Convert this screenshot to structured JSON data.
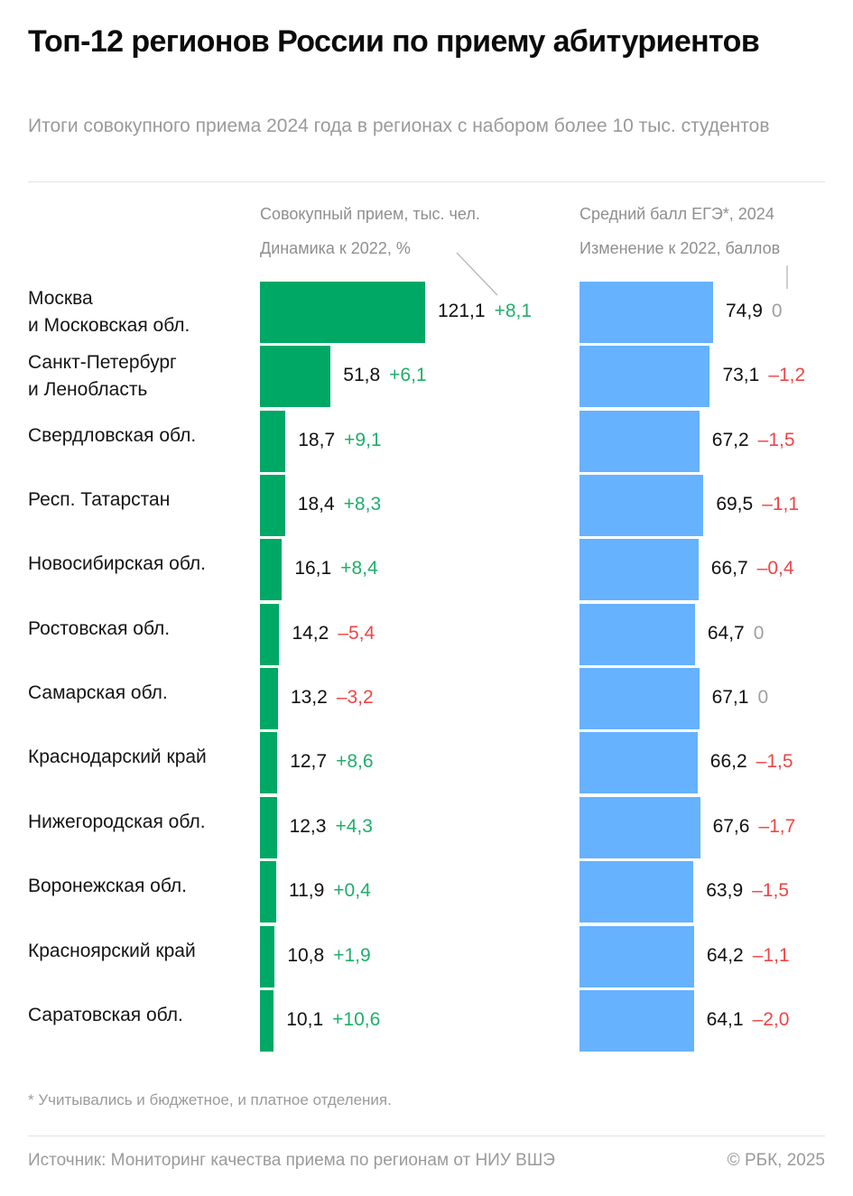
{
  "header": {
    "title": "Топ-12 регионов России по приему абитуриентов",
    "subtitle": "Итоги совокупного приема 2024 года в регионах с набором более 10 тыс. студентов"
  },
  "columns": {
    "left_title": "Совокупный прием, тыс. чел.",
    "left_subtitle": "Динамика к 2022, %",
    "right_title": "Средний балл ЕГЭ*, 2024",
    "right_subtitle": "Изменение к 2022, баллов"
  },
  "colors": {
    "admissions_bar": "#00a865",
    "score_bar": "#66b2ff",
    "positive": "#1fae6a",
    "negative": "#f04545",
    "neutral": "#a0a0a0"
  },
  "chart_data": {
    "type": "bar",
    "orientation": "horizontal",
    "title": "Топ-12 регионов России по приему абитуриентов",
    "categories": [
      "Москва\nи Московская обл.",
      "Санкт-Петербург\nи Ленобласть",
      "Свердловская обл.",
      "Респ. Татарстан",
      "Новосибирская обл.",
      "Ростовская обл.",
      "Самарская обл.",
      "Краснодарский край",
      "Нижегородская обл.",
      "Воронежская обл.",
      "Красноярский край",
      "Саратовская обл."
    ],
    "series": [
      {
        "name": "Совокупный прием, тыс. чел.",
        "values": [
          121.1,
          51.8,
          18.7,
          18.4,
          16.1,
          14.2,
          13.2,
          12.7,
          12.3,
          11.9,
          10.8,
          10.1
        ],
        "labels": [
          "121,1",
          "51,8",
          "18,7",
          "18,4",
          "16,1",
          "14,2",
          "13,2",
          "12,7",
          "12,3",
          "11,9",
          "10,8",
          "10,1"
        ]
      },
      {
        "name": "Динамика к 2022, %",
        "values": [
          8.1,
          6.1,
          9.1,
          8.3,
          8.4,
          -5.4,
          -3.2,
          8.6,
          4.3,
          0.4,
          1.9,
          10.6
        ],
        "labels": [
          "+8,1",
          "+6,1",
          "+9,1",
          "+8,3",
          "+8,4",
          "–5,4",
          "–3,2",
          "+8,6",
          "+4,3",
          "+0,4",
          "+1,9",
          "+10,6"
        ]
      },
      {
        "name": "Средний балл ЕГЭ*, 2024",
        "values": [
          74.9,
          73.1,
          67.2,
          69.5,
          66.7,
          64.7,
          67.1,
          66.2,
          67.6,
          63.9,
          64.2,
          64.1
        ],
        "labels": [
          "74,9",
          "73,1",
          "67,2",
          "69,5",
          "66,7",
          "64,7",
          "67,1",
          "66,2",
          "67,6",
          "63,9",
          "64,2",
          "64,1"
        ]
      },
      {
        "name": "Изменение к 2022, баллов",
        "values": [
          0,
          -1.2,
          -1.5,
          -1.1,
          -0.4,
          0,
          0,
          -1.5,
          -1.7,
          -1.5,
          -1.1,
          -2.0
        ],
        "labels": [
          "0",
          "–1,2",
          "–1,5",
          "–1,1",
          "–0,4",
          "0",
          "0",
          "–1,5",
          "–1,7",
          "–1,5",
          "–1,1",
          "–2,0"
        ]
      }
    ],
    "xlim_admissions": [
      0,
      121.1
    ],
    "xlim_score": [
      0,
      74.9
    ],
    "grid": false,
    "legend": "none"
  },
  "footer": {
    "footnote": "* Учитывались и бюджетное, и платное отделения.",
    "source": "Источник: Мониторинг качества приема по регионам от НИУ ВШЭ",
    "copyright": "© РБК, 2025"
  }
}
